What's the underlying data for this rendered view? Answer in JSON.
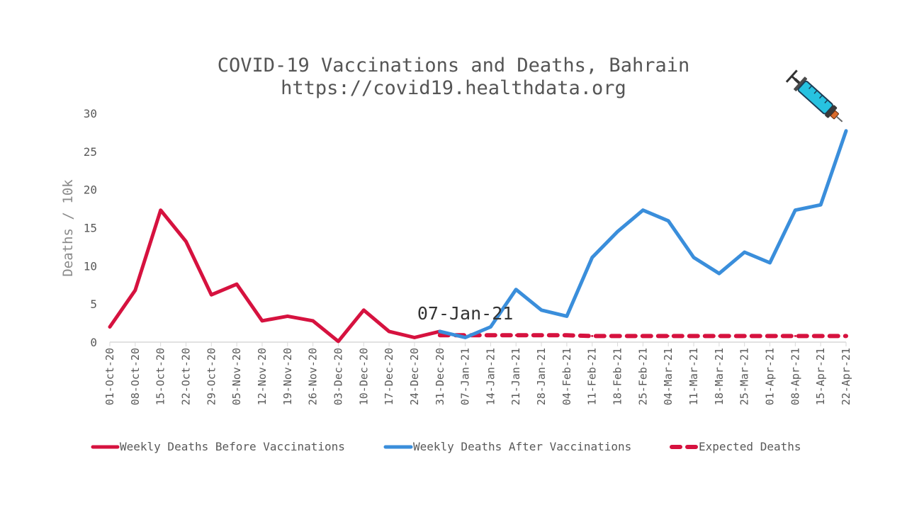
{
  "chart_data": {
    "type": "line",
    "title": "COVID-19 Vaccinations and Deaths, Bahrain",
    "subtitle": "https://covid19.healthdata.org",
    "xlabel": "",
    "ylabel": "Deaths / 10k",
    "ylim": [
      0,
      30
    ],
    "yticks": [
      "0",
      "5",
      "10",
      "15",
      "20",
      "25",
      "30"
    ],
    "grid": false,
    "legend_position": "bottom",
    "categories": [
      "01-Oct-20",
      "08-Oct-20",
      "15-Oct-20",
      "22-Oct-20",
      "29-Oct-20",
      "05-Nov-20",
      "12-Nov-20",
      "19-Nov-20",
      "26-Nov-20",
      "03-Dec-20",
      "10-Dec-20",
      "17-Dec-20",
      "24-Dec-20",
      "31-Dec-20",
      "07-Jan-21",
      "14-Jan-21",
      "21-Jan-21",
      "28-Jan-21",
      "04-Feb-21",
      "11-Feb-21",
      "18-Feb-21",
      "25-Feb-21",
      "04-Mar-21",
      "11-Mar-21",
      "18-Mar-21",
      "25-Mar-21",
      "01-Apr-21",
      "08-Apr-21",
      "15-Apr-21",
      "22-Apr-21"
    ],
    "series": [
      {
        "name": "Weekly Deaths Before Vaccinations",
        "color": "#d6123f",
        "style": "solid",
        "values": [
          2.0,
          6.8,
          17.3,
          13.2,
          6.2,
          7.6,
          2.8,
          3.4,
          2.8,
          0.1,
          4.2,
          1.4,
          0.6,
          1.4,
          null,
          null,
          null,
          null,
          null,
          null,
          null,
          null,
          null,
          null,
          null,
          null,
          null,
          null,
          null,
          null
        ]
      },
      {
        "name": "Weekly Deaths After Vaccinations",
        "color": "#3a8edb",
        "style": "solid",
        "values": [
          null,
          null,
          null,
          null,
          null,
          null,
          null,
          null,
          null,
          null,
          null,
          null,
          null,
          1.4,
          0.6,
          2.0,
          6.9,
          4.2,
          3.4,
          11.1,
          14.5,
          17.3,
          15.9,
          11.1,
          9.0,
          11.8,
          10.4,
          17.3,
          18.0,
          27.7
        ]
      },
      {
        "name": "Expected Deaths",
        "color": "#d6123f",
        "style": "dashed",
        "values": [
          null,
          null,
          null,
          null,
          null,
          null,
          null,
          null,
          null,
          null,
          null,
          null,
          null,
          0.9,
          0.9,
          0.9,
          0.9,
          0.9,
          0.9,
          0.8,
          0.8,
          0.8,
          0.8,
          0.8,
          0.8,
          0.8,
          0.8,
          0.8,
          0.8,
          0.8
        ]
      }
    ],
    "annotations": [
      {
        "text": "07-Jan-21",
        "x": "07-Jan-21",
        "y": 3.6
      }
    ]
  },
  "decoration": {
    "syringe_icon": "syringe-icon"
  }
}
